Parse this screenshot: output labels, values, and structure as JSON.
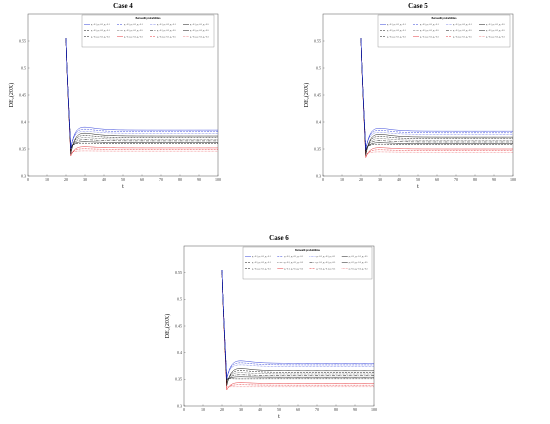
{
  "legend_items": [
    "p₁=0.1, p₂=0.1, p₃=0.1",
    "p₁=0.5, p₂=0.1, p₃=0.1",
    "p₁=0.1, p₂=0.5, p₃=0.1",
    "p₁=0.1, p₂=0.1, p₃=0.5",
    "p₁=0.5, p₂=0.5, p₃=0.1",
    "p₁=0.5, p₂=0.1, p₃=0.5",
    "p₁=0.1, p₂=0.5, p₃=0.5",
    "p₁=0.5, p₂=0.5, p₃=0.5",
    "p₁=0.5, p₂=0.1, p₃=0.3",
    "p₁=0.1, p₂=0.5, p₃=0.3",
    "p₁=0.3, p₂=0.1, p₃=0.5",
    "p₁=0.5, p₂=0.3, p₃=0.3"
  ],
  "series_colors": [
    "#1f2fd6",
    "#1f2fd6",
    "#1f2fd6",
    "#000000",
    "#000000",
    "#000000",
    "#000000",
    "#000000",
    "#000000",
    "#e3262b",
    "#e3262b",
    "#e3262b"
  ],
  "series_dashes": [
    "",
    "2,1",
    "0.6,0.8",
    "",
    "2,1",
    "0.6,0.8",
    "3,1,0.6,1",
    "",
    "2,1",
    "",
    "2,1",
    "0.6,0.8"
  ],
  "chart_data": [
    {
      "type": "line",
      "title": "Case 4",
      "xlabel": "t",
      "ylabel": "DE₂(20X)",
      "xlim": [
        0,
        100
      ],
      "ylim": [
        0.3,
        0.6
      ],
      "xticks": [
        0,
        10,
        20,
        30,
        40,
        50,
        60,
        70,
        80,
        90,
        100
      ],
      "yticks": [
        0.3,
        0.35,
        0.4,
        0.45,
        0.5,
        0.55
      ],
      "legend_title": "Bernoulli probabilities",
      "legend_position": "top-right",
      "t_start": 20,
      "peak": 0.555,
      "trough_t": 22.5,
      "troughs": [
        0.35,
        0.352,
        0.354,
        0.34,
        0.345,
        0.348,
        0.35,
        0.352,
        0.355,
        0.337,
        0.34,
        0.343
      ],
      "steady": [
        0.385,
        0.382,
        0.379,
        0.374,
        0.371,
        0.368,
        0.365,
        0.362,
        0.36,
        0.352,
        0.349,
        0.346
      ]
    },
    {
      "type": "line",
      "title": "Case 5",
      "xlabel": "t",
      "ylabel": "DE₂(20X)",
      "xlim": [
        0,
        100
      ],
      "ylim": [
        0.3,
        0.6
      ],
      "xticks": [
        0,
        10,
        20,
        30,
        40,
        50,
        60,
        70,
        80,
        90,
        100
      ],
      "yticks": [
        0.3,
        0.35,
        0.4,
        0.45,
        0.5,
        0.55
      ],
      "legend_title": "Bernoulli probabilities",
      "legend_position": "top-right",
      "t_start": 20,
      "peak": 0.555,
      "trough_t": 22.5,
      "troughs": [
        0.348,
        0.35,
        0.352,
        0.338,
        0.341,
        0.344,
        0.347,
        0.349,
        0.352,
        0.334,
        0.337,
        0.34
      ],
      "steady": [
        0.383,
        0.38,
        0.377,
        0.372,
        0.369,
        0.366,
        0.363,
        0.36,
        0.358,
        0.35,
        0.347,
        0.344
      ]
    },
    {
      "type": "line",
      "title": "Case 6",
      "xlabel": "t",
      "ylabel": "DE₂(20X)",
      "xlim": [
        0,
        100
      ],
      "ylim": [
        0.3,
        0.6
      ],
      "xticks": [
        0,
        10,
        20,
        30,
        40,
        50,
        60,
        70,
        80,
        90,
        100
      ],
      "yticks": [
        0.3,
        0.35,
        0.4,
        0.45,
        0.5,
        0.55
      ],
      "legend_title": "Bernoulli probabilities",
      "legend_position": "top-right",
      "t_start": 20,
      "peak": 0.555,
      "trough_t": 22.5,
      "troughs": [
        0.35,
        0.352,
        0.354,
        0.338,
        0.341,
        0.344,
        0.347,
        0.349,
        0.352,
        0.33,
        0.333,
        0.336
      ],
      "steady": [
        0.38,
        0.377,
        0.374,
        0.366,
        0.363,
        0.36,
        0.357,
        0.354,
        0.351,
        0.342,
        0.339,
        0.336
      ]
    }
  ]
}
